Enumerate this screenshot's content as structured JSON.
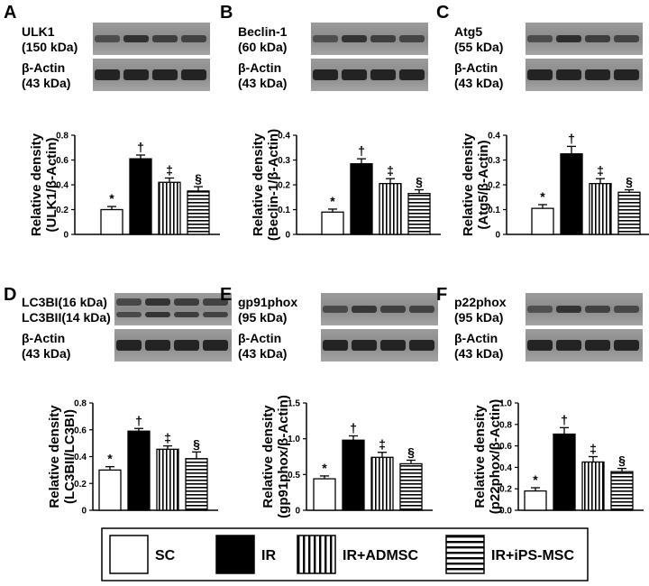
{
  "legend": {
    "items": [
      {
        "label": "SC",
        "pattern": "white"
      },
      {
        "label": "IR",
        "pattern": "black"
      },
      {
        "label": "IR+ADMSC",
        "pattern": "vertical"
      },
      {
        "label": "IR+iPS-MSC",
        "pattern": "horizontal"
      }
    ]
  },
  "chart_data": [
    {
      "type": "bar",
      "panel": "A",
      "blots": [
        {
          "line1": "ULK1",
          "line2": "(150 kDa)"
        },
        {
          "line1": "β-Actin",
          "line2": "(43 kDa)"
        }
      ],
      "ylabel": [
        "Relative density",
        "(ULK1/β-Actin)"
      ],
      "yticks": [
        "0",
        "0.2",
        "0.4",
        "0.6",
        "0.8"
      ],
      "ylim": [
        0,
        0.8
      ],
      "series": [
        {
          "name": "SC",
          "values": [
            0.2
          ],
          "err": [
            0.025
          ],
          "mark": "*"
        },
        {
          "name": "IR",
          "values": [
            0.61
          ],
          "err": [
            0.03
          ],
          "mark": "†"
        },
        {
          "name": "IR+ADMSC",
          "values": [
            0.42
          ],
          "err": [
            0.035
          ],
          "mark": "‡"
        },
        {
          "name": "IR+iPS-MSC",
          "values": [
            0.35
          ],
          "err": [
            0.035
          ],
          "mark": "§"
        }
      ]
    },
    {
      "type": "bar",
      "panel": "B",
      "blots": [
        {
          "line1": "Beclin-1",
          "line2": "(60 kDa)"
        },
        {
          "line1": "β-Actin",
          "line2": "(43 kDa)"
        }
      ],
      "ylabel": [
        "Relative density",
        "(Beclin-1/β-Actin)"
      ],
      "yticks": [
        "0",
        "0.1",
        "0.2",
        "0.3",
        "0.4"
      ],
      "ylim": [
        0,
        0.4
      ],
      "series": [
        {
          "name": "SC",
          "values": [
            0.09
          ],
          "err": [
            0.012
          ],
          "mark": "*"
        },
        {
          "name": "IR",
          "values": [
            0.285
          ],
          "err": [
            0.02
          ],
          "mark": "†"
        },
        {
          "name": "IR+ADMSC",
          "values": [
            0.205
          ],
          "err": [
            0.02
          ],
          "mark": "‡"
        },
        {
          "name": "IR+iPS-MSC",
          "values": [
            0.165
          ],
          "err": [
            0.015
          ],
          "mark": "§"
        }
      ]
    },
    {
      "type": "bar",
      "panel": "C",
      "blots": [
        {
          "line1": "Atg5",
          "line2": "(55 kDa)"
        },
        {
          "line1": "β-Actin",
          "line2": "(43 kDa)"
        }
      ],
      "ylabel": [
        "Relative density",
        "(Atg5/β-Actin)"
      ],
      "yticks": [
        "0",
        "0.1",
        "0.2",
        "0.3",
        "0.4"
      ],
      "ylim": [
        0,
        0.4
      ],
      "series": [
        {
          "name": "SC",
          "values": [
            0.105
          ],
          "err": [
            0.015
          ],
          "mark": "*"
        },
        {
          "name": "IR",
          "values": [
            0.325
          ],
          "err": [
            0.03
          ],
          "mark": "†"
        },
        {
          "name": "IR+ADMSC",
          "values": [
            0.205
          ],
          "err": [
            0.02
          ],
          "mark": "‡"
        },
        {
          "name": "IR+iPS-MSC",
          "values": [
            0.17
          ],
          "err": [
            0.01
          ],
          "mark": "§"
        }
      ]
    },
    {
      "type": "bar",
      "panel": "D",
      "blots": [
        {
          "line1": "LC3BI(16 kDa)",
          "line2": "LC3BII(14 kDa)"
        },
        {
          "line1": "β-Actin",
          "line2": "(43 kDa)"
        }
      ],
      "ylabel": [
        "Relative density",
        "(LC3BII/LC3BI)"
      ],
      "yticks": [
        "0",
        "0.2",
        "0.4",
        "0.6",
        "0.8"
      ],
      "ylim": [
        0,
        0.8
      ],
      "series": [
        {
          "name": "SC",
          "values": [
            0.3
          ],
          "err": [
            0.025
          ],
          "mark": "*"
        },
        {
          "name": "IR",
          "values": [
            0.59
          ],
          "err": [
            0.02
          ],
          "mark": "†"
        },
        {
          "name": "IR+ADMSC",
          "values": [
            0.455
          ],
          "err": [
            0.025
          ],
          "mark": "‡"
        },
        {
          "name": "IR+iPS-MSC",
          "values": [
            0.385
          ],
          "err": [
            0.05
          ],
          "mark": "§"
        }
      ]
    },
    {
      "type": "bar",
      "panel": "E",
      "blots": [
        {
          "line1": "gp91phox",
          "line2": "(95 kDa)"
        },
        {
          "line1": "β-Actin",
          "line2": "(43 kDa)"
        }
      ],
      "ylabel": [
        "Relative density",
        "(gp91phox/β-Actin)"
      ],
      "yticks": [
        "0",
        "0.5",
        "1.0",
        "1.5"
      ],
      "ylim": [
        0,
        1.5
      ],
      "series": [
        {
          "name": "SC",
          "values": [
            0.44
          ],
          "err": [
            0.04
          ],
          "mark": "*"
        },
        {
          "name": "IR",
          "values": [
            0.98
          ],
          "err": [
            0.06
          ],
          "mark": "†"
        },
        {
          "name": "IR+ADMSC",
          "values": [
            0.74
          ],
          "err": [
            0.07
          ],
          "mark": "‡"
        },
        {
          "name": "IR+iPS-MSC",
          "values": [
            0.65
          ],
          "err": [
            0.05
          ],
          "mark": "§"
        }
      ]
    },
    {
      "type": "bar",
      "panel": "F",
      "blots": [
        {
          "line1": "p22phox",
          "line2": "(95 kDa)"
        },
        {
          "line1": "β-Actin",
          "line2": "(43 kDa)"
        }
      ],
      "ylabel": [
        "Relative density",
        "(p22phox/β-Actin)"
      ],
      "yticks": [
        "0.0",
        "0.2",
        "0.4",
        "0.6",
        "0.8",
        "1.0"
      ],
      "ylim": [
        0,
        1.0
      ],
      "series": [
        {
          "name": "SC",
          "values": [
            0.18
          ],
          "err": [
            0.03
          ],
          "mark": "*"
        },
        {
          "name": "IR",
          "values": [
            0.71
          ],
          "err": [
            0.06
          ],
          "mark": "†"
        },
        {
          "name": "IR+ADMSC",
          "values": [
            0.45
          ],
          "err": [
            0.05
          ],
          "mark": "‡"
        },
        {
          "name": "IR+iPS-MSC",
          "values": [
            0.36
          ],
          "err": [
            0.03
          ],
          "mark": "§"
        }
      ]
    }
  ]
}
